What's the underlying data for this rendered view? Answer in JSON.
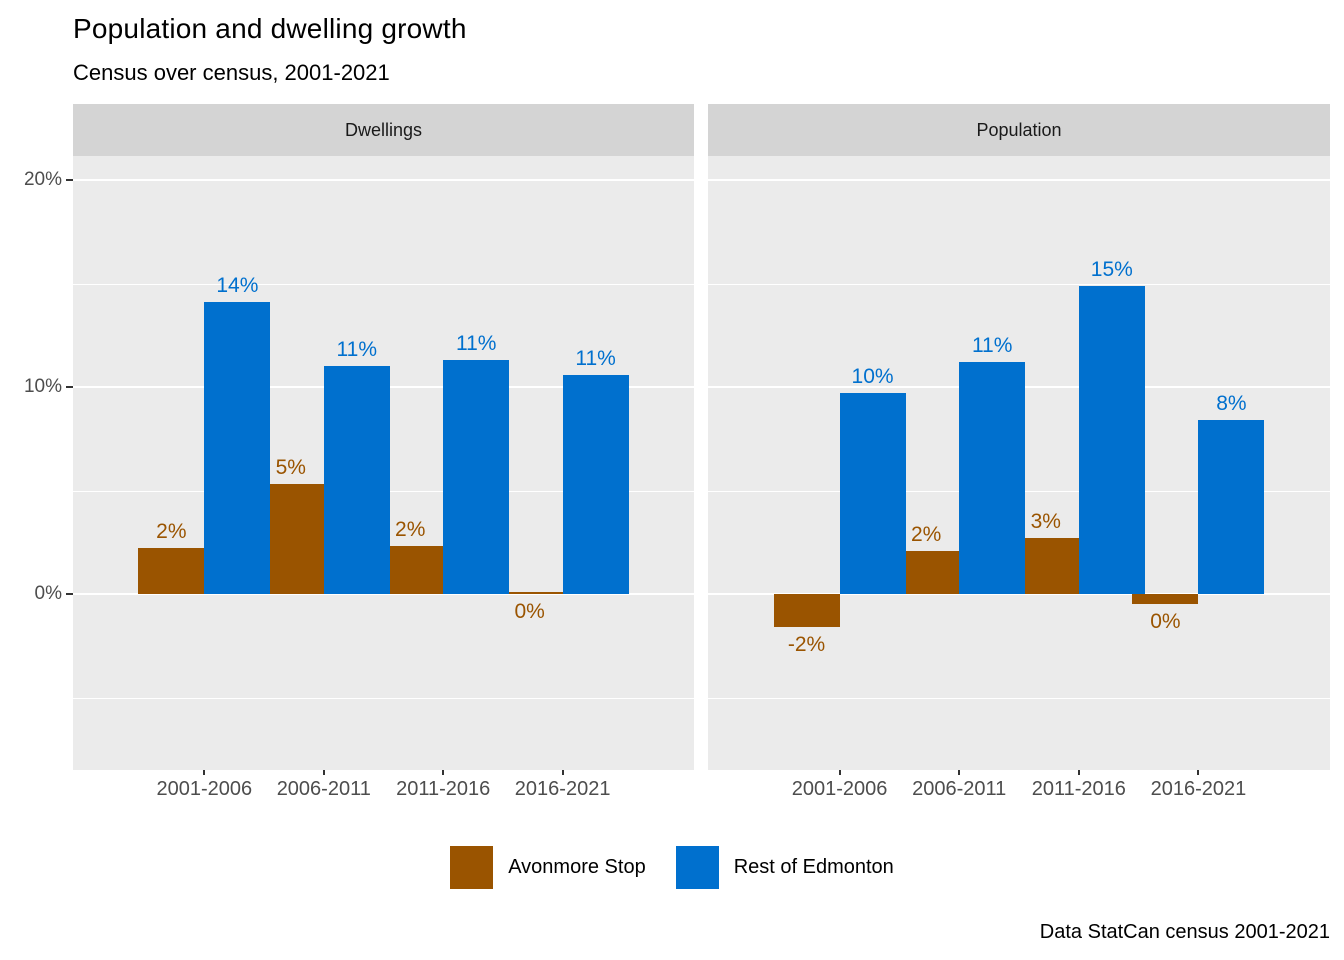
{
  "title": "Population and dwelling growth",
  "subtitle": "Census over census, 2001-2021",
  "caption": "Data StatCan census 2001-2021",
  "legend": {
    "items": [
      {
        "label": "Avonmore Stop",
        "color": "#9A5400"
      },
      {
        "label": "Rest of Edmonton",
        "color": "#0070CE"
      }
    ]
  },
  "colors": {
    "avonmore": "#9A5400",
    "rest_of_edmonton": "#0070CE",
    "panel_background": "#EBEBEB",
    "strip_background": "#D4D4D4",
    "gridline": "#FFFFFF",
    "axis_text": "#4D4D4D",
    "strip_text": "#1A1A1A",
    "tick_mark": "#333333",
    "title_text": "#000000"
  },
  "chart_data": {
    "type": "bar",
    "categories": [
      "2001-2006",
      "2006-2011",
      "2011-2016",
      "2016-2021"
    ],
    "y_axis": {
      "tick_labels": [
        "20%",
        "10%",
        "0%"
      ],
      "tick_values": [
        20,
        10,
        0
      ],
      "minor_tick_values": [
        -5,
        5,
        15
      ],
      "range": [
        -8.5,
        21.2
      ],
      "unit": "percent"
    },
    "grid": true,
    "legend_position": "bottom",
    "facets": [
      {
        "label": "Dwellings",
        "series": [
          {
            "name": "Avonmore Stop",
            "values": [
              2.2,
              5.3,
              2.3,
              0.1
            ],
            "labels": [
              "2%",
              "5%",
              "2%",
              "0%"
            ]
          },
          {
            "name": "Rest of Edmonton",
            "values": [
              14.1,
              11.0,
              11.3,
              10.6
            ],
            "labels": [
              "14%",
              "11%",
              "11%",
              "11%"
            ]
          }
        ]
      },
      {
        "label": "Population",
        "series": [
          {
            "name": "Avonmore Stop",
            "values": [
              -1.6,
              2.1,
              2.7,
              -0.5
            ],
            "labels": [
              "-2%",
              "2%",
              "3%",
              "0%"
            ]
          },
          {
            "name": "Rest of Edmonton",
            "values": [
              9.7,
              11.2,
              14.9,
              8.4
            ],
            "labels": [
              "10%",
              "11%",
              "15%",
              "8%"
            ]
          }
        ]
      }
    ]
  }
}
